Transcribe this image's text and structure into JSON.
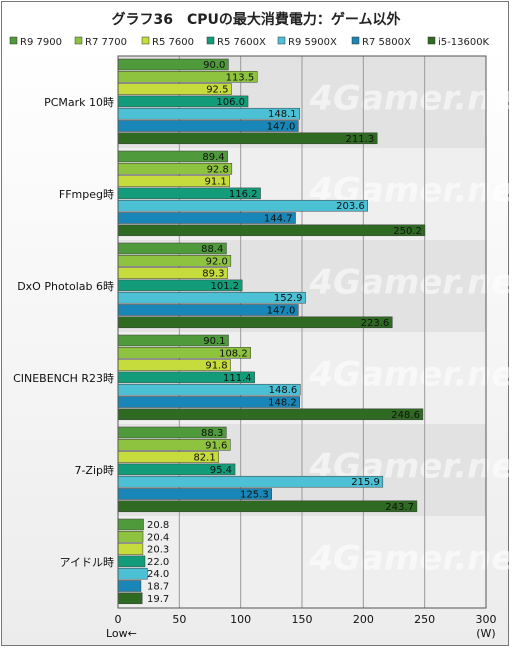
{
  "chart_data": {
    "type": "bar",
    "orientation": "horizontal",
    "title": "グラフ36　CPUの最大消費電力：ゲーム以外",
    "categories": [
      "PCMark 10時",
      "FFmpeg時",
      "DxO Photolab 6時",
      "CINEBENCH R23時",
      "7-Zip時",
      "アイドル時"
    ],
    "series": [
      {
        "name": "R9 7900",
        "color": "#4f9a3a",
        "values": [
          90.0,
          89.4,
          88.4,
          90.1,
          88.3,
          20.8
        ]
      },
      {
        "name": "R7 7700",
        "color": "#8ec33f",
        "values": [
          113.5,
          92.8,
          92.0,
          108.2,
          91.6,
          20.4
        ]
      },
      {
        "name": "R5 7600",
        "color": "#c6dc3c",
        "values": [
          92.5,
          91.1,
          89.3,
          91.8,
          82.1,
          20.3
        ]
      },
      {
        "name": "R5 7600X",
        "color": "#139c7a",
        "values": [
          106.0,
          116.2,
          101.2,
          111.4,
          95.4,
          22.0
        ]
      },
      {
        "name": "R9 5900X",
        "color": "#4cc1d6",
        "values": [
          148.1,
          203.6,
          152.9,
          148.6,
          215.9,
          24.0
        ]
      },
      {
        "name": "R7 5800X",
        "color": "#1886b6",
        "values": [
          147.0,
          144.7,
          147.0,
          148.2,
          125.3,
          18.7
        ]
      },
      {
        "name": "i5-13600K",
        "color": "#2f6a22",
        "values": [
          211.3,
          250.2,
          223.6,
          248.6,
          243.7,
          19.7
        ]
      }
    ],
    "value_labels": [
      [
        "90.0",
        "89.4",
        "88.4",
        "90.1",
        "88.3",
        "20.8"
      ],
      [
        "113.5",
        "92.8",
        "92.0",
        "108.2",
        "91.6",
        "20.4"
      ],
      [
        "92.5",
        "91.1",
        "89.3",
        "91.8",
        "82.1",
        "20.3"
      ],
      [
        "106.0",
        "116.2",
        "101.2",
        "111.4",
        "95.4",
        "22.0"
      ],
      [
        "148.1",
        "203.6",
        "152.9",
        "148.6",
        "215.9",
        "24.0"
      ],
      [
        "147.0",
        "144.7",
        "147.0",
        "148.2",
        "125.3",
        "18.7"
      ],
      [
        "211.3",
        "250.2",
        "223.6",
        "248.6",
        "243.7",
        "19.7"
      ]
    ],
    "xlim": [
      0,
      300
    ],
    "xticks": [
      0,
      50,
      100,
      150,
      200,
      250,
      300
    ],
    "x_unit": "(W)",
    "x_direction_note": "Low←",
    "legend_position": "top",
    "grid": true,
    "watermark": "4Gamer.net"
  }
}
